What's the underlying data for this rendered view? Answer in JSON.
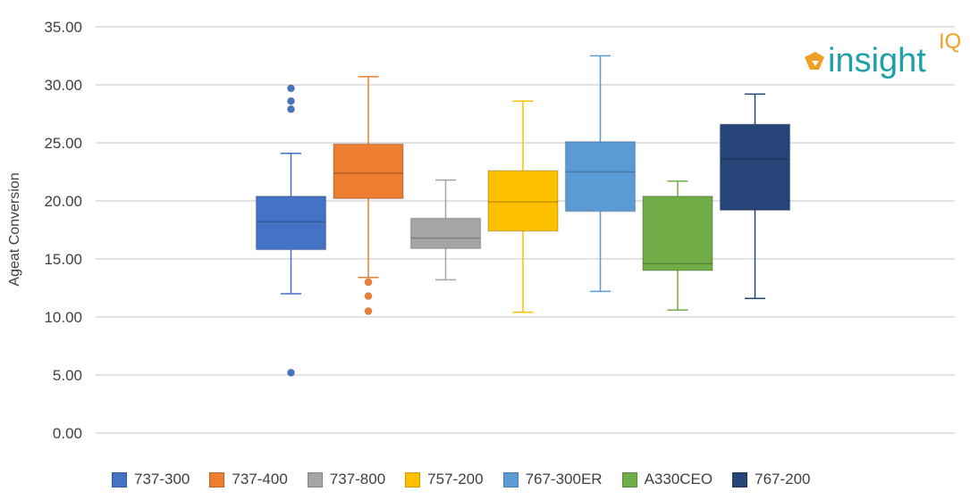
{
  "chart_data": {
    "type": "box",
    "title": "",
    "xlabel": "",
    "ylabel": "Ageat Conversion",
    "ylim": [
      0,
      35
    ],
    "yticks": [
      "0.00",
      "5.00",
      "10.00",
      "15.00",
      "20.00",
      "25.00",
      "30.00",
      "35.00"
    ],
    "grid": true,
    "legend_position": "bottom",
    "series": [
      {
        "name": "737-300",
        "color": "#4472C4",
        "min": 12.0,
        "q1": 15.8,
        "median": 18.2,
        "q3": 20.4,
        "max": 24.1,
        "outliers": [
          29.7,
          28.6,
          27.9,
          5.2
        ]
      },
      {
        "name": "737-400",
        "color": "#ED7D31",
        "min": 13.4,
        "q1": 20.2,
        "median": 22.4,
        "q3": 24.9,
        "max": 30.7,
        "outliers": [
          13.0,
          11.8,
          10.5
        ]
      },
      {
        "name": "737-800",
        "color": "#A5A5A5",
        "min": 13.2,
        "q1": 15.9,
        "median": 16.8,
        "q3": 18.5,
        "max": 21.8,
        "outliers": []
      },
      {
        "name": "757-200",
        "color": "#FFC000",
        "min": 10.4,
        "q1": 17.4,
        "median": 19.9,
        "q3": 22.6,
        "max": 28.6,
        "outliers": []
      },
      {
        "name": "767-300ER",
        "color": "#5B9BD5",
        "min": 12.2,
        "q1": 19.1,
        "median": 22.5,
        "q3": 25.1,
        "max": 32.5,
        "outliers": []
      },
      {
        "name": "A330CEO",
        "color": "#70AD47",
        "min": 10.6,
        "q1": 14.0,
        "median": 14.6,
        "q3": 20.4,
        "max": 21.7,
        "outliers": []
      },
      {
        "name": "767-200",
        "color": "#264478",
        "min": 11.6,
        "q1": 19.2,
        "median": 23.6,
        "q3": 26.6,
        "max": 29.2,
        "outliers": []
      }
    ]
  },
  "logo": {
    "text": "insight",
    "suffix": "IQ"
  }
}
